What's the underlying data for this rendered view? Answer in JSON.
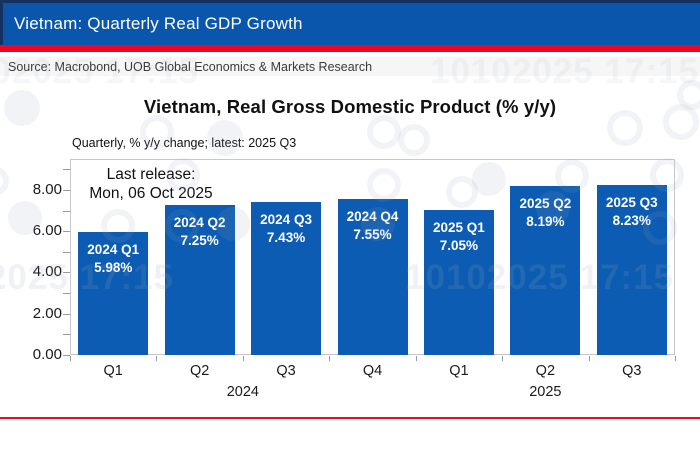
{
  "window": {
    "title": "Vietnam: Quarterly Real GDP Growth"
  },
  "source_line": "Source: Macrobond, UOB Global Economics & Markets Research",
  "watermark": {
    "text": "10102025 17:15"
  },
  "colors": {
    "header_blue": "#0A56AC",
    "header_edge_navy": "#16305F",
    "stripe_red": "#F8031F",
    "bottom_line_red": "#E40F2C",
    "bar_blue": "#0B5CB2",
    "plot_border_gray": "#C8C8C8",
    "source_band_gray": "#F6F6F6"
  },
  "chart": {
    "title": "Vietnam, Real Gross Domestic Product (% y/y)",
    "subtitle": "Quarterly, % y/y change; latest: 2025 Q3",
    "annotation": {
      "line1": "Last release:",
      "line2": "Mon, 06 Oct 2025"
    }
  },
  "chart_data": {
    "type": "bar",
    "title": "Vietnam, Real Gross Domestic Product (% y/y)",
    "subtitle": "Quarterly, % y/y change; latest: 2025 Q3",
    "xlabel": "",
    "ylabel": "",
    "ylim": [
      0,
      9.5
    ],
    "grid": false,
    "legend": null,
    "bar_color": "#0B5CB2",
    "yticks": [
      {
        "value": 0,
        "label": "0.00"
      },
      {
        "value": 2,
        "label": "2.00"
      },
      {
        "value": 4,
        "label": "4.00"
      },
      {
        "value": 6,
        "label": "6.00"
      },
      {
        "value": 8,
        "label": "8.00"
      }
    ],
    "minor_ticks": [
      1,
      3,
      5,
      7,
      9
    ],
    "categories": [
      "Q1",
      "Q2",
      "Q3",
      "Q4",
      "Q1",
      "Q2",
      "Q3"
    ],
    "values": [
      5.98,
      7.25,
      7.43,
      7.55,
      7.05,
      8.19,
      8.23
    ],
    "bars": [
      {
        "year": "2024",
        "quarter": "Q1",
        "value": 5.98,
        "label_line1": "2024 Q1",
        "label_line2": "5.98%"
      },
      {
        "year": "2024",
        "quarter": "Q2",
        "value": 7.25,
        "label_line1": "2024 Q2",
        "label_line2": "7.25%"
      },
      {
        "year": "2024",
        "quarter": "Q3",
        "value": 7.43,
        "label_line1": "2024 Q3",
        "label_line2": "7.43%"
      },
      {
        "year": "2024",
        "quarter": "Q4",
        "value": 7.55,
        "label_line1": "2024 Q4",
        "label_line2": "7.55%"
      },
      {
        "year": "2025",
        "quarter": "Q1",
        "value": 7.05,
        "label_line1": "2025 Q1",
        "label_line2": "7.05%"
      },
      {
        "year": "2025",
        "quarter": "Q2",
        "value": 8.19,
        "label_line1": "2025 Q2",
        "label_line2": "8.19%"
      },
      {
        "year": "2025",
        "quarter": "Q3",
        "value": 8.23,
        "label_line1": "2025 Q3",
        "label_line2": "8.23%"
      }
    ],
    "year_groups": [
      {
        "label": "2024",
        "start": 0,
        "end": 3
      },
      {
        "label": "2025",
        "start": 4,
        "end": 6
      }
    ]
  }
}
